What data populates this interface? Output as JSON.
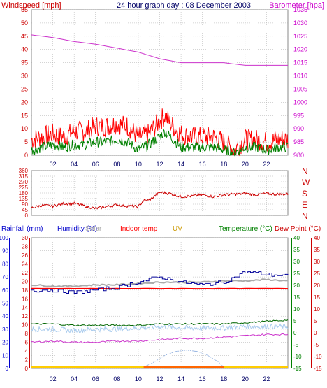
{
  "header": {
    "left_label": "Windspeed [mph]",
    "title": "24 hour graph day : 08 December 2003",
    "right_label": "Barometer [hpa]"
  },
  "middle_header": {
    "labels": [
      "Rainfall (mm)",
      "Humidity (%)",
      "Solar",
      "Indoor temp",
      "UV",
      "Temperature (°C)",
      "Dew Point (°C)"
    ]
  },
  "x_ticks": [
    "02",
    "04",
    "06",
    "08",
    "10",
    "12",
    "14",
    "16",
    "18",
    "20",
    "22"
  ],
  "colors": {
    "wind_axis": "#cc0000",
    "baro_axis": "#cc00cc",
    "rain_axis": "#0000cc",
    "humid_axis": "#cc0000",
    "temp_axis": "#008000",
    "dew_axis": "#cc0000",
    "grid": "#aaaaaa",
    "wind": "#ff0000",
    "gust": "#008000",
    "baro": "#cc33cc",
    "dir": "#cc0000",
    "humidity": "#000099",
    "indoor": "#ff0000",
    "solar": "#aaaaaa",
    "temp": "#006600",
    "dew": "#aaccee",
    "rain": "#cc33cc",
    "uv": "#ffcc00"
  },
  "chart_data": [
    {
      "type": "line",
      "title": "24 hour graph day : 08 December 2003",
      "ylabel": "Windspeed [mph]",
      "y2label": "Barometer [hpa]",
      "ylim": [
        0,
        55
      ],
      "y2lim": [
        980,
        1035
      ],
      "yticks": [
        0,
        5,
        10,
        15,
        20,
        25,
        30,
        35,
        40,
        45,
        50,
        55
      ],
      "y2ticks": [
        980,
        985,
        990,
        995,
        1000,
        1005,
        1010,
        1015,
        1020,
        1025,
        1030,
        1035
      ],
      "xlim": [
        0,
        24
      ],
      "series": [
        {
          "name": "Windspeed",
          "x": [
            0,
            1,
            2,
            3,
            4,
            5,
            6,
            7,
            8,
            9,
            10,
            11,
            12,
            12.5,
            13,
            14,
            15,
            16,
            17,
            18,
            19,
            20,
            21,
            22,
            23,
            24
          ],
          "values": [
            6,
            7,
            8,
            7,
            9,
            9,
            11,
            11,
            12,
            11,
            7,
            8,
            13,
            15,
            12,
            8,
            7,
            7,
            7,
            5,
            2,
            6,
            6,
            5,
            6,
            6
          ]
        },
        {
          "name": "Gust",
          "x": [
            0,
            1,
            2,
            3,
            4,
            5,
            6,
            7,
            8,
            9,
            10,
            11,
            12,
            12.5,
            13,
            14,
            15,
            16,
            17,
            18,
            19,
            20,
            21,
            22,
            23,
            24
          ],
          "values": [
            2,
            3,
            4,
            3,
            4,
            4,
            5,
            5,
            6,
            5,
            2,
            4,
            7,
            9,
            7,
            3,
            3,
            3,
            3,
            2,
            1,
            3,
            3,
            2,
            3,
            3
          ]
        },
        {
          "name": "Barometer",
          "x": [
            0,
            2,
            4,
            6,
            8,
            10,
            12,
            14,
            16,
            18,
            20,
            22,
            24
          ],
          "values": [
            1025.5,
            1024.5,
            1023.0,
            1022.0,
            1020.5,
            1019.0,
            1016.5,
            1015.0,
            1015.0,
            1015.0,
            1014.0,
            1014.0,
            1014.0
          ]
        }
      ]
    },
    {
      "type": "line",
      "ylim": [
        0,
        360
      ],
      "yticks": [
        0,
        45,
        90,
        135,
        180,
        225,
        270,
        315,
        360
      ],
      "y2ticks": [
        "N",
        "E",
        "S",
        "W",
        "N"
      ],
      "xlim": [
        0,
        24
      ],
      "series": [
        {
          "name": "Wind direction",
          "x": [
            0,
            1,
            2,
            3,
            4,
            5,
            6,
            7,
            8,
            9,
            10,
            10.5,
            11,
            12,
            13,
            14,
            15,
            16,
            17,
            18,
            19,
            20,
            21,
            22,
            23,
            24
          ],
          "values": [
            60,
            80,
            75,
            95,
            95,
            75,
            55,
            70,
            85,
            75,
            70,
            120,
            120,
            185,
            175,
            150,
            155,
            165,
            150,
            165,
            170,
            175,
            165,
            175,
            170,
            170
          ]
        }
      ]
    },
    {
      "type": "line",
      "ylim": [
        0,
        100
      ],
      "y2lim": [
        0,
        30
      ],
      "y3lim": [
        -15,
        40
      ],
      "rain_ticks": [
        0,
        10,
        20,
        30,
        40,
        50,
        60,
        70,
        80,
        90,
        100
      ],
      "humidity_ticks": [
        0,
        2,
        4,
        6,
        8,
        10,
        12,
        14,
        16,
        18,
        20,
        22,
        24,
        26,
        28,
        30
      ],
      "temp_ticks": [
        -15,
        -10,
        -5,
        0,
        5,
        10,
        15,
        20,
        25,
        30,
        35,
        40
      ],
      "xlim": [
        0,
        24
      ],
      "series": [
        {
          "name": "Humidity",
          "x": [
            0,
            2,
            4,
            6,
            8,
            10,
            12,
            14,
            16,
            18,
            20,
            22,
            24
          ],
          "values": [
            60,
            60,
            58,
            60,
            62,
            66,
            70,
            66,
            64,
            66,
            74,
            72,
            71
          ]
        },
        {
          "name": "Solar",
          "x": [
            0,
            2,
            4,
            6,
            8,
            10,
            12,
            14,
            16,
            18,
            20,
            22,
            24
          ],
          "values": [
            64,
            63,
            63,
            64,
            64,
            65,
            66,
            66,
            66,
            67,
            67,
            68,
            67
          ]
        },
        {
          "name": "Indoor temp",
          "x": [
            0,
            6,
            12,
            18,
            24
          ],
          "values": [
            61,
            61,
            61,
            61,
            61
          ]
        },
        {
          "name": "Temperature",
          "x": [
            0,
            2,
            4,
            6,
            8,
            10,
            12,
            14,
            16,
            18,
            20,
            22,
            24
          ],
          "values": [
            34,
            34,
            33,
            33,
            33,
            33,
            34,
            34,
            34,
            34,
            35,
            36,
            37
          ]
        },
        {
          "name": "Dew Point",
          "x": [
            0,
            2,
            4,
            6,
            8,
            10,
            12,
            14,
            16,
            18,
            20,
            22,
            24
          ],
          "values": [
            30,
            30,
            29,
            30,
            30,
            31,
            32,
            31,
            31,
            31,
            32,
            32,
            32
          ]
        },
        {
          "name": "Rainfall",
          "x": [
            0,
            2,
            4,
            6,
            8,
            10,
            12,
            14,
            16,
            18,
            20,
            22,
            24
          ],
          "values": [
            20,
            21,
            20,
            20,
            21,
            21,
            22,
            23,
            23,
            24,
            25,
            26,
            26
          ]
        },
        {
          "name": "UV",
          "x": [
            10.5,
            11.5,
            12.5,
            13.5,
            14.5,
            15.5,
            16.5,
            17.5,
            18
          ],
          "values": [
            1,
            5,
            10,
            13,
            14,
            13,
            10,
            5,
            1
          ]
        }
      ]
    }
  ]
}
